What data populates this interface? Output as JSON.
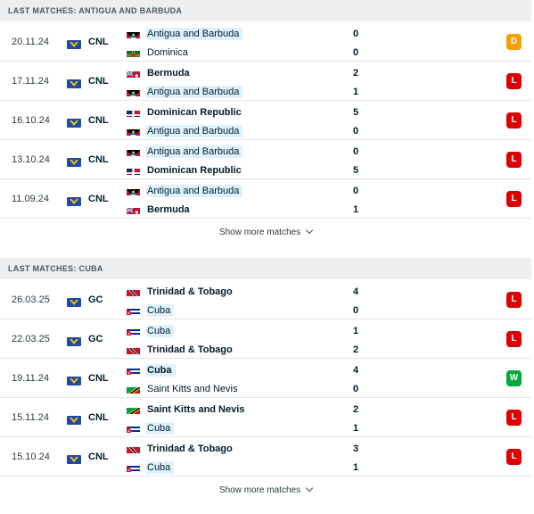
{
  "sections": [
    {
      "title": "LAST MATCHES: ANTIGUA AND BARBUDA",
      "show_more": "Show more matches",
      "matches": [
        {
          "date": "20.11.24",
          "comp": "CNL",
          "home": {
            "name": "Antigua and Barbuda",
            "flag": "antigua",
            "score": "0",
            "bold": false,
            "hl": true
          },
          "away": {
            "name": "Dominica",
            "flag": "dominica",
            "score": "0",
            "bold": false,
            "hl": false
          },
          "result": "D"
        },
        {
          "date": "17.11.24",
          "comp": "CNL",
          "home": {
            "name": "Bermuda",
            "flag": "bermuda",
            "score": "2",
            "bold": true,
            "hl": false
          },
          "away": {
            "name": "Antigua and Barbuda",
            "flag": "antigua",
            "score": "1",
            "bold": false,
            "hl": true
          },
          "result": "L"
        },
        {
          "date": "16.10.24",
          "comp": "CNL",
          "home": {
            "name": "Dominican Republic",
            "flag": "dominican",
            "score": "5",
            "bold": true,
            "hl": false
          },
          "away": {
            "name": "Antigua and Barbuda",
            "flag": "antigua",
            "score": "0",
            "bold": false,
            "hl": true
          },
          "result": "L"
        },
        {
          "date": "13.10.24",
          "comp": "CNL",
          "home": {
            "name": "Antigua and Barbuda",
            "flag": "antigua",
            "score": "0",
            "bold": false,
            "hl": true
          },
          "away": {
            "name": "Dominican Republic",
            "flag": "dominican",
            "score": "5",
            "bold": true,
            "hl": false
          },
          "result": "L"
        },
        {
          "date": "11.09.24",
          "comp": "CNL",
          "home": {
            "name": "Antigua and Barbuda",
            "flag": "antigua",
            "score": "0",
            "bold": false,
            "hl": true
          },
          "away": {
            "name": "Bermuda",
            "flag": "bermuda",
            "score": "1",
            "bold": true,
            "hl": false
          },
          "result": "L"
        }
      ]
    },
    {
      "title": "LAST MATCHES: CUBA",
      "show_more": "Show more matches",
      "matches": [
        {
          "date": "26.03.25",
          "comp": "GC",
          "home": {
            "name": "Trinidad & Tobago",
            "flag": "trinidad",
            "score": "4",
            "bold": true,
            "hl": false
          },
          "away": {
            "name": "Cuba",
            "flag": "cuba",
            "score": "0",
            "bold": false,
            "hl": true
          },
          "result": "L"
        },
        {
          "date": "22.03.25",
          "comp": "GC",
          "home": {
            "name": "Cuba",
            "flag": "cuba",
            "score": "1",
            "bold": false,
            "hl": true
          },
          "away": {
            "name": "Trinidad & Tobago",
            "flag": "trinidad",
            "score": "2",
            "bold": true,
            "hl": false
          },
          "result": "L"
        },
        {
          "date": "19.11.24",
          "comp": "CNL",
          "home": {
            "name": "Cuba",
            "flag": "cuba",
            "score": "4",
            "bold": true,
            "hl": true
          },
          "away": {
            "name": "Saint Kitts and Nevis",
            "flag": "stkitts",
            "score": "0",
            "bold": false,
            "hl": false
          },
          "result": "W"
        },
        {
          "date": "15.11.24",
          "comp": "CNL",
          "home": {
            "name": "Saint Kitts and Nevis",
            "flag": "stkitts",
            "score": "2",
            "bold": true,
            "hl": false
          },
          "away": {
            "name": "Cuba",
            "flag": "cuba",
            "score": "1",
            "bold": false,
            "hl": true
          },
          "result": "L"
        },
        {
          "date": "15.10.24",
          "comp": "CNL",
          "home": {
            "name": "Trinidad & Tobago",
            "flag": "trinidad",
            "score": "3",
            "bold": true,
            "hl": false
          },
          "away": {
            "name": "Cuba",
            "flag": "cuba",
            "score": "1",
            "bold": false,
            "hl": true
          },
          "result": "L"
        }
      ]
    }
  ],
  "colors": {
    "loss": "#dc0000",
    "win": "#00a83f",
    "draw": "#f3a000",
    "highlight": "#dff1ff"
  }
}
